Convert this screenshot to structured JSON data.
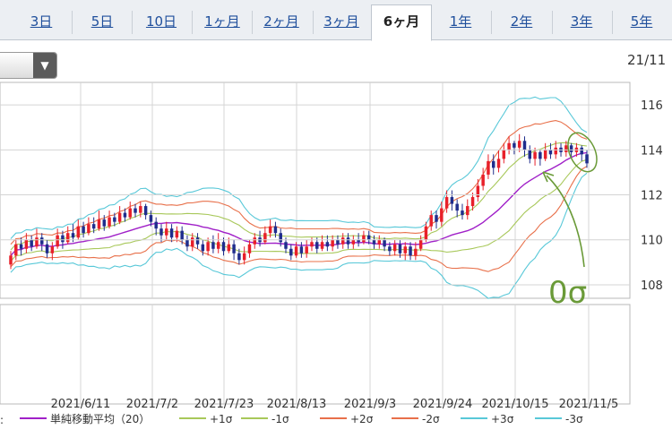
{
  "tabs": [
    {
      "label": "3日"
    },
    {
      "label": "5日"
    },
    {
      "label": "10日"
    },
    {
      "label": "1ヶ月"
    },
    {
      "label": "2ヶ月"
    },
    {
      "label": "3ヶ月"
    },
    {
      "label": "6ヶ月",
      "active": true
    },
    {
      "label": "1年"
    },
    {
      "label": "2年"
    },
    {
      "label": "3年"
    },
    {
      "label": "5年"
    }
  ],
  "header": {
    "date_label": "21/11"
  },
  "colors": {
    "candle_up": "#e8202a",
    "candle_down": "#1f2d8c",
    "sma": "#a020c8",
    "band1": "#a8c85a",
    "band2": "#e8704a",
    "band3": "#58c8d8",
    "annotation": "#6a9a38"
  },
  "annotation": {
    "label": "0σ"
  },
  "chart_data": {
    "type": "candlestick",
    "title": "",
    "y_ticks": [
      "116",
      "114",
      "112",
      "110",
      "108"
    ],
    "ylim": [
      107.4,
      117.0
    ],
    "x_tick_labels": [
      "2021/6/11",
      "2021/7/2",
      "2021/7/23",
      "2021/8/13",
      "2021/9/3",
      "2021/9/24",
      "2021/10/15",
      "2021/11/5"
    ],
    "legend": [
      {
        "name": "単純移動平均（20）",
        "color": "#a020c8"
      },
      {
        "name": "+1σ",
        "color": "#a8c85a"
      },
      {
        "name": "-1σ",
        "color": "#a8c85a"
      },
      {
        "name": "+2σ",
        "color": "#e8704a"
      },
      {
        "name": "-2σ",
        "color": "#e8704a"
      },
      {
        "name": "+3σ",
        "color": "#58c8d8"
      },
      {
        "name": "-3σ",
        "color": "#58c8d8"
      }
    ],
    "candles": [
      [
        108.9,
        109.3,
        109.5,
        108.7
      ],
      [
        109.3,
        109.8,
        110.0,
        109.1
      ],
      [
        109.8,
        109.6,
        110.1,
        109.3
      ],
      [
        109.6,
        110.0,
        110.3,
        109.4
      ],
      [
        110.0,
        109.7,
        110.2,
        109.5
      ],
      [
        109.7,
        110.1,
        110.5,
        109.6
      ],
      [
        110.1,
        109.8,
        110.3,
        109.5
      ],
      [
        109.8,
        109.4,
        110.0,
        109.2
      ],
      [
        109.4,
        109.7,
        109.9,
        109.1
      ],
      [
        109.7,
        110.2,
        110.5,
        109.6
      ],
      [
        110.2,
        109.9,
        110.4,
        109.6
      ],
      [
        109.9,
        110.3,
        110.6,
        109.8
      ],
      [
        110.3,
        110.1,
        110.7,
        109.9
      ],
      [
        110.1,
        110.6,
        110.9,
        110.0
      ],
      [
        110.6,
        110.3,
        110.8,
        110.1
      ],
      [
        110.3,
        110.7,
        111.0,
        110.2
      ],
      [
        110.7,
        110.5,
        111.0,
        110.3
      ],
      [
        110.5,
        110.9,
        111.3,
        110.4
      ],
      [
        110.9,
        110.6,
        111.1,
        110.4
      ],
      [
        110.6,
        111.0,
        111.3,
        110.5
      ],
      [
        111.0,
        110.8,
        111.2,
        110.6
      ],
      [
        110.8,
        111.2,
        111.5,
        110.7
      ],
      [
        111.2,
        111.0,
        111.4,
        110.8
      ],
      [
        111.0,
        111.4,
        111.7,
        110.9
      ],
      [
        111.4,
        111.2,
        111.6,
        111.0
      ],
      [
        111.2,
        111.5,
        111.7,
        111.0
      ],
      [
        111.5,
        111.1,
        111.6,
        110.9
      ],
      [
        111.1,
        110.8,
        111.3,
        110.6
      ],
      [
        110.8,
        110.5,
        111.0,
        110.2
      ],
      [
        110.5,
        110.2,
        110.7,
        109.9
      ],
      [
        110.2,
        110.5,
        110.8,
        110.0
      ],
      [
        110.5,
        110.1,
        110.7,
        109.9
      ],
      [
        110.1,
        110.4,
        110.6,
        109.9
      ],
      [
        110.4,
        110.0,
        110.6,
        109.8
      ],
      [
        110.0,
        109.7,
        110.2,
        109.5
      ],
      [
        109.7,
        110.1,
        110.3,
        109.5
      ],
      [
        110.1,
        109.8,
        110.3,
        109.6
      ],
      [
        109.8,
        109.5,
        110.0,
        109.3
      ],
      [
        109.5,
        109.9,
        110.1,
        109.3
      ],
      [
        109.9,
        109.6,
        110.2,
        109.4
      ],
      [
        109.6,
        109.9,
        110.3,
        109.4
      ],
      [
        109.9,
        109.5,
        110.1,
        109.3
      ],
      [
        109.5,
        109.8,
        110.1,
        109.4
      ],
      [
        109.8,
        109.4,
        110.0,
        109.1
      ],
      [
        109.4,
        109.1,
        109.6,
        108.9
      ],
      [
        109.1,
        109.4,
        109.7,
        108.9
      ],
      [
        109.4,
        109.8,
        110.0,
        109.2
      ],
      [
        109.8,
        110.1,
        110.3,
        109.6
      ],
      [
        110.1,
        109.9,
        110.4,
        109.7
      ],
      [
        109.9,
        110.3,
        110.6,
        109.8
      ],
      [
        110.3,
        110.6,
        110.9,
        110.1
      ],
      [
        110.6,
        110.3,
        110.8,
        110.1
      ],
      [
        110.3,
        109.9,
        110.5,
        109.7
      ],
      [
        109.9,
        109.6,
        110.1,
        109.4
      ],
      [
        109.6,
        109.3,
        109.8,
        109.1
      ],
      [
        109.3,
        109.7,
        109.9,
        109.2
      ],
      [
        109.7,
        109.4,
        109.9,
        109.2
      ],
      [
        109.4,
        109.7,
        110.0,
        109.2
      ],
      [
        109.7,
        109.9,
        110.1,
        109.5
      ],
      [
        109.9,
        109.6,
        110.1,
        109.4
      ],
      [
        109.6,
        109.9,
        110.2,
        109.5
      ],
      [
        109.9,
        109.7,
        110.2,
        109.5
      ],
      [
        109.7,
        110.0,
        110.2,
        109.5
      ],
      [
        110.0,
        109.8,
        110.2,
        109.6
      ],
      [
        109.8,
        110.1,
        110.3,
        109.6
      ],
      [
        110.1,
        109.8,
        110.3,
        109.6
      ],
      [
        109.8,
        110.0,
        110.2,
        109.6
      ],
      [
        110.0,
        109.9,
        110.3,
        109.7
      ],
      [
        109.9,
        110.2,
        110.4,
        109.8
      ],
      [
        110.2,
        110.0,
        110.4,
        109.8
      ],
      [
        110.0,
        109.8,
        110.2,
        109.6
      ],
      [
        109.8,
        110.0,
        110.2,
        109.6
      ],
      [
        110.0,
        109.7,
        110.1,
        109.5
      ],
      [
        109.7,
        109.5,
        109.9,
        109.3
      ],
      [
        109.5,
        109.8,
        110.0,
        109.3
      ],
      [
        109.8,
        109.4,
        110.0,
        109.2
      ],
      [
        109.4,
        109.7,
        109.9,
        109.1
      ],
      [
        109.7,
        109.3,
        109.9,
        109.1
      ],
      [
        109.3,
        109.6,
        109.9,
        109.1
      ],
      [
        109.6,
        110.0,
        110.2,
        109.5
      ],
      [
        110.0,
        110.6,
        110.8,
        109.9
      ],
      [
        110.6,
        111.1,
        111.3,
        110.4
      ],
      [
        111.1,
        110.8,
        111.3,
        110.5
      ],
      [
        110.8,
        111.4,
        111.7,
        110.6
      ],
      [
        111.4,
        111.9,
        112.2,
        111.2
      ],
      [
        111.9,
        111.6,
        112.2,
        111.3
      ],
      [
        111.6,
        111.3,
        111.8,
        111.0
      ],
      [
        111.3,
        111.1,
        111.6,
        110.9
      ],
      [
        111.1,
        111.5,
        111.8,
        110.9
      ],
      [
        111.5,
        111.9,
        112.1,
        111.3
      ],
      [
        111.9,
        112.4,
        112.7,
        111.7
      ],
      [
        112.4,
        112.9,
        113.2,
        112.2
      ],
      [
        112.9,
        113.5,
        113.8,
        112.7
      ],
      [
        113.5,
        113.2,
        113.8,
        112.9
      ],
      [
        113.2,
        113.6,
        114.0,
        113.0
      ],
      [
        113.6,
        114.0,
        114.3,
        113.4
      ],
      [
        114.0,
        114.3,
        114.6,
        113.8
      ],
      [
        114.3,
        114.1,
        114.4,
        113.8
      ],
      [
        114.1,
        114.4,
        114.7,
        113.9
      ],
      [
        114.4,
        114.0,
        114.6,
        113.7
      ],
      [
        114.0,
        113.6,
        114.2,
        113.4
      ],
      [
        113.6,
        113.9,
        114.1,
        113.3
      ],
      [
        113.9,
        113.6,
        114.0,
        113.3
      ],
      [
        113.6,
        114.0,
        114.3,
        113.5
      ],
      [
        114.0,
        113.8,
        114.3,
        113.6
      ],
      [
        113.8,
        114.1,
        114.4,
        113.6
      ],
      [
        114.1,
        113.9,
        114.3,
        113.7
      ],
      [
        113.9,
        114.2,
        114.4,
        113.7
      ],
      [
        114.2,
        113.9,
        114.3,
        113.6
      ],
      [
        113.9,
        114.1,
        114.3,
        113.7
      ],
      [
        114.1,
        113.8,
        114.2,
        113.5
      ],
      [
        113.8,
        113.4,
        114.0,
        113.2
      ]
    ]
  }
}
